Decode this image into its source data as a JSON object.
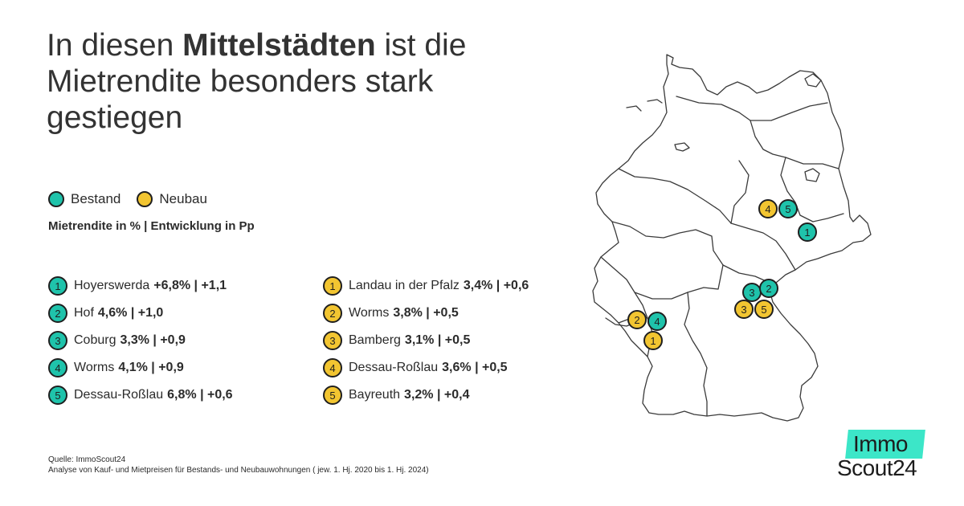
{
  "title": {
    "part1": "In diesen",
    "bold": "Mittelstädten",
    "part2": "ist die Mietrendite besonders stark gestiegen"
  },
  "legend": {
    "items": [
      {
        "label": "Bestand",
        "color": "#1fc3ab"
      },
      {
        "label": "Neubau",
        "color": "#f2c531"
      }
    ]
  },
  "subtitle": "Mietrendite in % | Entwicklung in Pp",
  "bestand": [
    {
      "rank": "1",
      "city": "Hoyerswerda",
      "value": "+6,8% | +1,1"
    },
    {
      "rank": "2",
      "city": "Hof",
      "value": "4,6% | +1,0"
    },
    {
      "rank": "3",
      "city": "Coburg",
      "value": "3,3% | +0,9"
    },
    {
      "rank": "4",
      "city": "Worms",
      "value": "4,1% | +0,9"
    },
    {
      "rank": "5",
      "city": "Dessau-Roßlau",
      "value": "6,8% | +0,6"
    }
  ],
  "neubau": [
    {
      "rank": "1",
      "city": "Landau in der Pfalz",
      "value": "3,4% | +0,6"
    },
    {
      "rank": "2",
      "city": "Worms",
      "value": "3,8% | +0,5"
    },
    {
      "rank": "3",
      "city": "Bamberg",
      "value": "3,1% | +0,5"
    },
    {
      "rank": "4",
      "city": "Dessau-Roßlau",
      "value": "3,6% | +0,5"
    },
    {
      "rank": "5",
      "city": "Bayreuth",
      "value": "3,2% | +0,4"
    }
  ],
  "map_markers": {
    "bestand": [
      "1",
      "2",
      "3",
      "4",
      "5"
    ],
    "neubau": [
      "1",
      "2",
      "3",
      "4",
      "5"
    ]
  },
  "source": {
    "line1": "Quelle: ImmoScout24",
    "line2": "Analyse von Kauf- und Mietpreisen für Bestands- und Neubauwohnungen ( jew. 1. Hj. 2020 bis 1. Hj. 2024)"
  },
  "logo": {
    "line1": "Immo",
    "line2": "Scout24",
    "accent": "#3ce6c8"
  },
  "colors": {
    "bestand": "#1fc3ab",
    "neubau": "#f2c531",
    "text": "#2b2b2b"
  }
}
